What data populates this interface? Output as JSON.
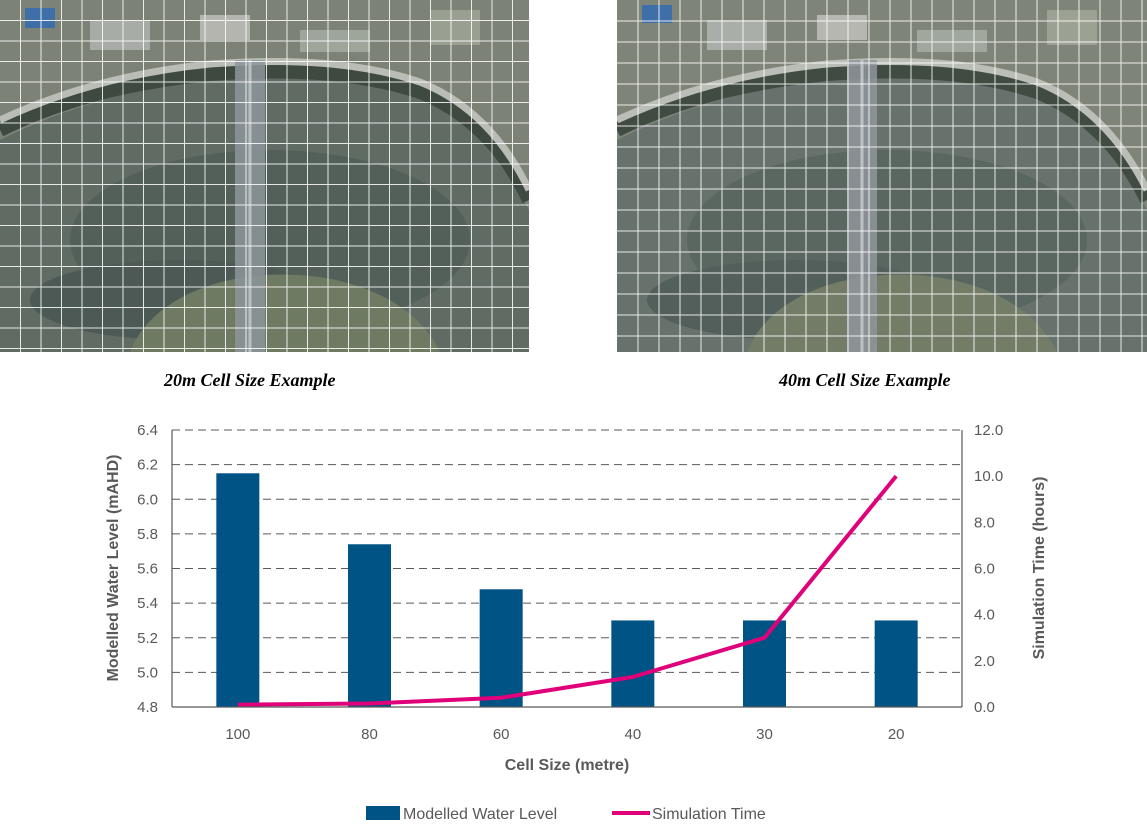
{
  "images": {
    "left": {
      "caption": "20m Cell Size Example"
    },
    "right": {
      "caption": "40m Cell Size Example"
    }
  },
  "colors": {
    "bar": "#005385",
    "line": "#e0007a",
    "grid": "#595959",
    "text": "#595959"
  },
  "chart_data": {
    "type": "bar",
    "categories": [
      "100",
      "80",
      "60",
      "40",
      "30",
      "20"
    ],
    "series": [
      {
        "name": "Modelled Water Level",
        "type": "bar",
        "axis": "left",
        "values": [
          6.15,
          5.74,
          5.48,
          5.3,
          5.3,
          5.3
        ]
      },
      {
        "name": "Simulation Time",
        "type": "line",
        "axis": "right",
        "values": [
          0.1,
          0.15,
          0.4,
          1.3,
          3.0,
          10.0
        ]
      }
    ],
    "xlabel": "Cell Size (metre)",
    "ylabel": "Modelled Water Level (mAHD)",
    "ylabel_right": "Simulation Time (hours)",
    "ylim": [
      4.8,
      6.4
    ],
    "ylim_right": [
      0,
      12
    ],
    "yticks": [
      "4.8",
      "5.0",
      "5.2",
      "5.4",
      "5.6",
      "5.8",
      "6.0",
      "6.2",
      "6.4"
    ],
    "yticks_right": [
      "0.0",
      "2.0",
      "4.0",
      "6.0",
      "8.0",
      "10.0",
      "12.0"
    ],
    "legend": [
      "Modelled Water Level",
      "Simulation Time"
    ],
    "legend_position": "bottom"
  }
}
